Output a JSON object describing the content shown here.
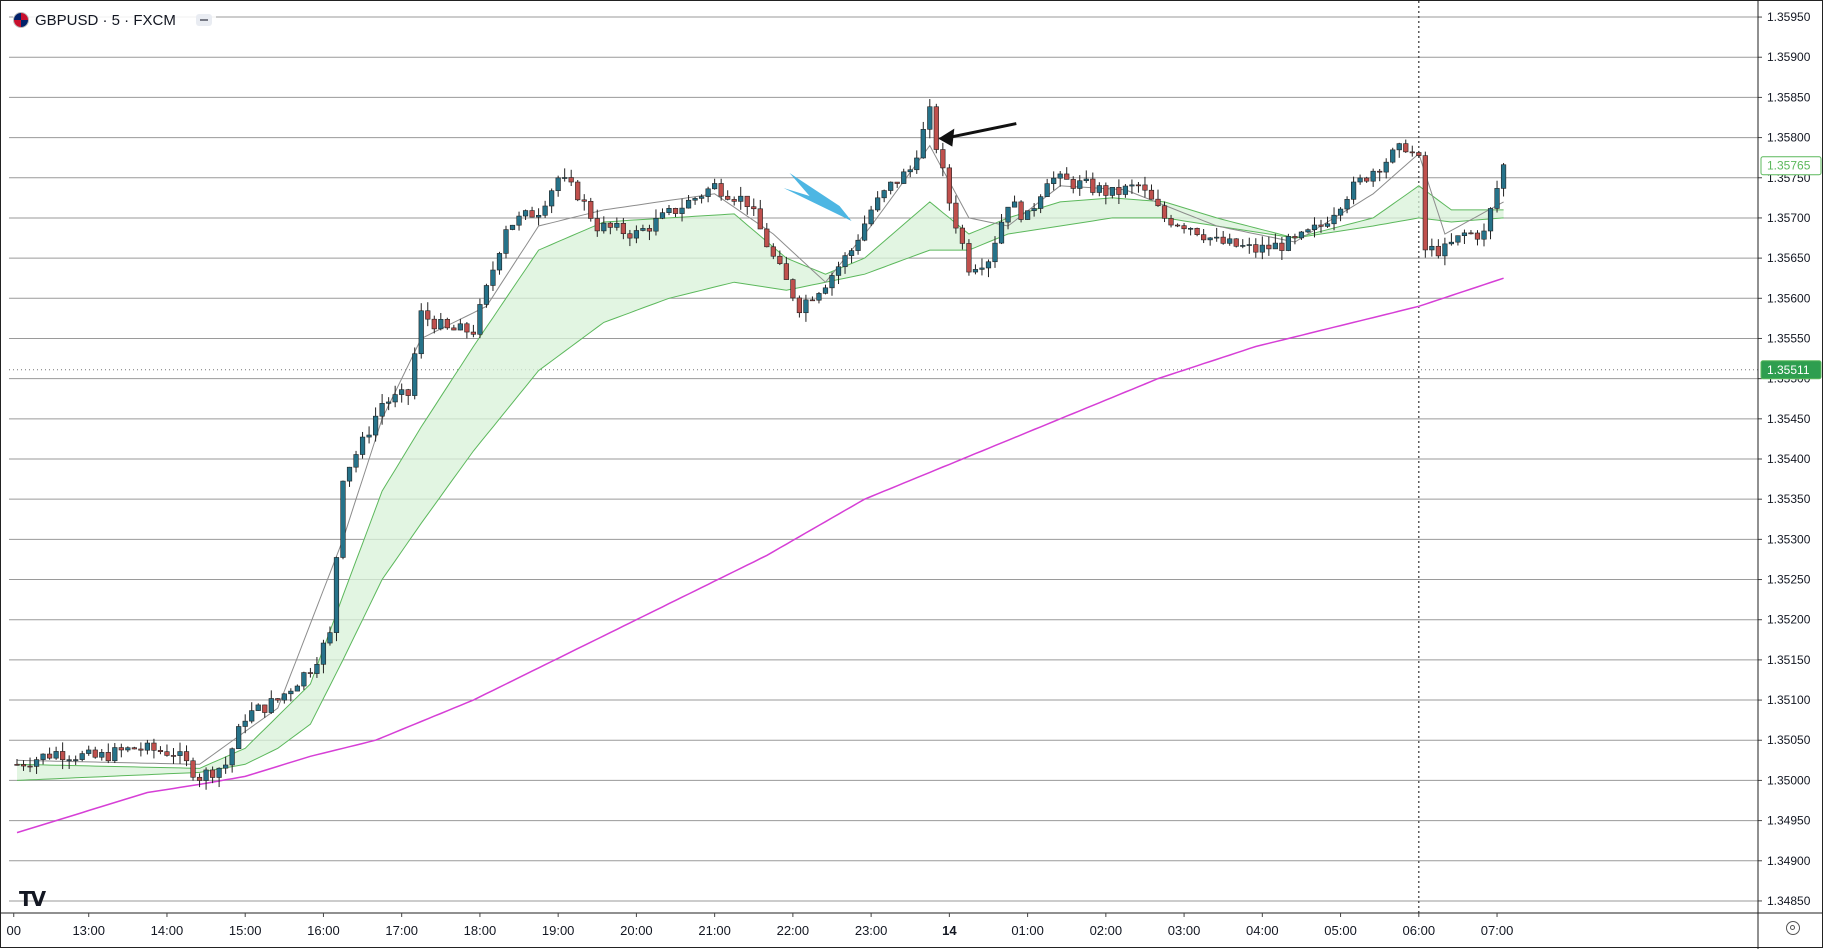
{
  "header": {
    "symbol_title": "GBPUSD · 5 · FXCM"
  },
  "logo_text": "TV",
  "colors": {
    "up_candle": "#26738a",
    "down_candle": "#c0504d",
    "ema_fast": "#8c8c8c",
    "ema_band_edge": "#5cb85c",
    "ema_band_fill": "#d8f2d8",
    "ema_slow": "#d63fd6",
    "last_price_tag": "#2e9e4f",
    "current_price_tag": "#5cb85c"
  },
  "chart_data": {
    "type": "candlestick",
    "title": "GBPUSD · 5 · FXCM",
    "ylim": [
      1.34835,
      1.35965
    ],
    "price_axis_ticks": [
      "1.35950",
      "1.35900",
      "1.35850",
      "1.35800",
      "1.35750",
      "1.35700",
      "1.35650",
      "1.35600",
      "1.35550",
      "1.35500",
      "1.35450",
      "1.35400",
      "1.35350",
      "1.35300",
      "1.35250",
      "1.35200",
      "1.35150",
      "1.35100",
      "1.35050",
      "1.35000",
      "1.34950",
      "1.34900",
      "1.34850"
    ],
    "time_axis_ticks": [
      "00",
      "13:00",
      "14:00",
      "15:00",
      "16:00",
      "17:00",
      "18:00",
      "19:00",
      "20:00",
      "21:00",
      "22:00",
      "23:00",
      "14",
      "01:00",
      "02:00",
      "03:00",
      "04:00",
      "05:00",
      "06:00",
      "07:00"
    ],
    "time_index_of_ticks": [
      -0.5,
      11,
      23,
      35,
      47,
      59,
      71,
      83,
      95,
      107,
      119,
      131,
      143,
      155,
      167,
      179,
      191,
      203,
      215,
      227
    ],
    "price_tags": [
      {
        "label": "1.35765",
        "price": 1.35765,
        "style": "outline"
      },
      {
        "label": "1.35511",
        "price": 1.35511,
        "style": "filled"
      }
    ],
    "dotted_price_line": 1.35511,
    "vertical_dotted_line_at_index": 215,
    "ohlc_waypoints": [
      [
        0,
        1.3502
      ],
      [
        6,
        1.35035
      ],
      [
        12,
        1.35028
      ],
      [
        18,
        1.3504
      ],
      [
        24,
        1.35035
      ],
      [
        28,
        1.35005
      ],
      [
        32,
        1.3502
      ],
      [
        35,
        1.3508
      ],
      [
        40,
        1.351
      ],
      [
        45,
        1.3514
      ],
      [
        48,
        1.3518
      ],
      [
        50,
        1.3538
      ],
      [
        53,
        1.3542
      ],
      [
        56,
        1.3547
      ],
      [
        60,
        1.3548
      ],
      [
        62,
        1.3558
      ],
      [
        66,
        1.3556
      ],
      [
        70,
        1.3556
      ],
      [
        72,
        1.3561
      ],
      [
        75,
        1.3569
      ],
      [
        80,
        1.3571
      ],
      [
        83,
        1.3575
      ],
      [
        86,
        1.3573
      ],
      [
        89,
        1.3569
      ],
      [
        95,
        1.3568
      ],
      [
        101,
        1.3571
      ],
      [
        107,
        1.3574
      ],
      [
        112,
        1.3572
      ],
      [
        116,
        1.3565
      ],
      [
        120,
        1.3559
      ],
      [
        124,
        1.3562
      ],
      [
        128,
        1.3566
      ],
      [
        131,
        1.3571
      ],
      [
        134,
        1.3574
      ],
      [
        137,
        1.3576
      ],
      [
        140,
        1.3583
      ],
      [
        141,
        1.3579
      ],
      [
        143,
        1.3572
      ],
      [
        146,
        1.3564
      ],
      [
        149,
        1.3565
      ],
      [
        152,
        1.3572
      ],
      [
        155,
        1.357
      ],
      [
        158,
        1.3575
      ],
      [
        164,
        1.3574
      ],
      [
        168,
        1.3573
      ],
      [
        172,
        1.3574
      ],
      [
        176,
        1.357
      ],
      [
        180,
        1.3569
      ],
      [
        184,
        1.3567
      ],
      [
        190,
        1.3566
      ],
      [
        196,
        1.3567
      ],
      [
        200,
        1.3569
      ],
      [
        204,
        1.3573
      ],
      [
        208,
        1.3576
      ],
      [
        213,
        1.3579
      ],
      [
        215,
        1.3577
      ],
      [
        216,
        1.3566
      ],
      [
        219,
        1.3566
      ],
      [
        222,
        1.3568
      ],
      [
        225,
        1.3568
      ],
      [
        228,
        1.35765
      ]
    ],
    "ema_fast": [
      [
        0,
        1.35025
      ],
      [
        28,
        1.3502
      ],
      [
        40,
        1.3509
      ],
      [
        50,
        1.353
      ],
      [
        56,
        1.3545
      ],
      [
        62,
        1.3555
      ],
      [
        72,
        1.3559
      ],
      [
        80,
        1.3569
      ],
      [
        90,
        1.3571
      ],
      [
        107,
        1.3573
      ],
      [
        116,
        1.3568
      ],
      [
        124,
        1.3562
      ],
      [
        131,
        1.3569
      ],
      [
        140,
        1.3579
      ],
      [
        146,
        1.357
      ],
      [
        152,
        1.3569
      ],
      [
        160,
        1.3574
      ],
      [
        170,
        1.35735
      ],
      [
        184,
        1.3569
      ],
      [
        196,
        1.3567
      ],
      [
        208,
        1.3573
      ],
      [
        215,
        1.3578
      ],
      [
        219,
        1.3568
      ],
      [
        228,
        1.3572
      ]
    ],
    "ema_band_upper": [
      [
        0,
        1.3502
      ],
      [
        28,
        1.35015
      ],
      [
        35,
        1.3504
      ],
      [
        40,
        1.3508
      ],
      [
        45,
        1.3512
      ],
      [
        50,
        1.3523
      ],
      [
        56,
        1.3536
      ],
      [
        62,
        1.3544
      ],
      [
        70,
        1.3554
      ],
      [
        80,
        1.3566
      ],
      [
        90,
        1.35695
      ],
      [
        100,
        1.357
      ],
      [
        110,
        1.35705
      ],
      [
        118,
        1.3565
      ],
      [
        124,
        1.3563
      ],
      [
        130,
        1.3565
      ],
      [
        140,
        1.3572
      ],
      [
        146,
        1.3568
      ],
      [
        152,
        1.357
      ],
      [
        160,
        1.3572
      ],
      [
        168,
        1.35725
      ],
      [
        176,
        1.3572
      ],
      [
        184,
        1.357
      ],
      [
        196,
        1.35675
      ],
      [
        208,
        1.357
      ],
      [
        215,
        1.3574
      ],
      [
        220,
        1.3571
      ],
      [
        228,
        1.3571
      ]
    ],
    "ema_band_lower": [
      [
        0,
        1.35
      ],
      [
        28,
        1.3501
      ],
      [
        35,
        1.3502
      ],
      [
        40,
        1.3504
      ],
      [
        45,
        1.3507
      ],
      [
        50,
        1.3515
      ],
      [
        56,
        1.3525
      ],
      [
        62,
        1.3532
      ],
      [
        70,
        1.3541
      ],
      [
        80,
        1.3551
      ],
      [
        90,
        1.3557
      ],
      [
        100,
        1.356
      ],
      [
        110,
        1.3562
      ],
      [
        118,
        1.3561
      ],
      [
        124,
        1.3562
      ],
      [
        130,
        1.3563
      ],
      [
        140,
        1.3566
      ],
      [
        146,
        1.3566
      ],
      [
        152,
        1.3568
      ],
      [
        160,
        1.3569
      ],
      [
        168,
        1.357
      ],
      [
        176,
        1.357
      ],
      [
        184,
        1.3569
      ],
      [
        196,
        1.35675
      ],
      [
        208,
        1.3569
      ],
      [
        215,
        1.357
      ],
      [
        220,
        1.35695
      ],
      [
        228,
        1.357
      ]
    ],
    "ema_slow": [
      [
        0,
        1.34935
      ],
      [
        10,
        1.3496
      ],
      [
        20,
        1.34985
      ],
      [
        28,
        1.34995
      ],
      [
        35,
        1.35005
      ],
      [
        45,
        1.3503
      ],
      [
        55,
        1.3505
      ],
      [
        70,
        1.351
      ],
      [
        85,
        1.3516
      ],
      [
        100,
        1.3522
      ],
      [
        115,
        1.3528
      ],
      [
        130,
        1.3535
      ],
      [
        145,
        1.354
      ],
      [
        160,
        1.3545
      ],
      [
        175,
        1.355
      ],
      [
        190,
        1.3554
      ],
      [
        205,
        1.3557
      ],
      [
        215,
        1.3559
      ],
      [
        228,
        1.35625
      ]
    ],
    "annotations": [
      {
        "type": "black-arrow",
        "points_to_index": 141,
        "price": 1.358
      },
      {
        "type": "blue-arrow",
        "points_to_index": 128,
        "price": 1.357
      }
    ]
  }
}
